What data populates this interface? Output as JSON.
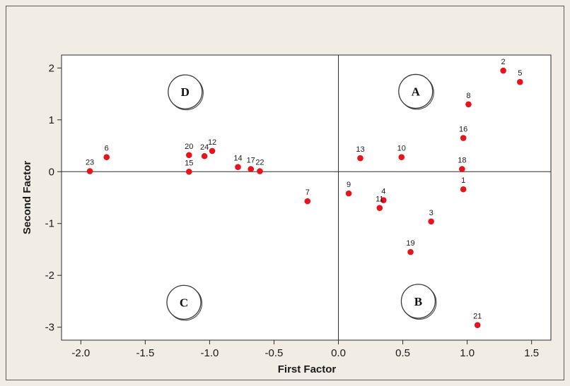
{
  "chart_data": {
    "type": "scatter",
    "title": "",
    "xlabel": "First Factor",
    "ylabel": "Second Factor",
    "xlim": [
      -2.15,
      1.65
    ],
    "ylim": [
      -3.25,
      2.25
    ],
    "x_ticks": [
      -2.0,
      -1.5,
      -1.0,
      -0.5,
      0.0,
      0.5,
      1.0,
      1.5
    ],
    "x_tick_labels": [
      "-2.0",
      "-1.5",
      "-1.0",
      "-0.5",
      "0.0",
      "0.5",
      "1.0",
      "1.5"
    ],
    "y_ticks": [
      2,
      1,
      0,
      -1,
      -2,
      -3
    ],
    "y_tick_labels": [
      "2",
      "1",
      "0",
      "-1",
      "-2",
      "-3"
    ],
    "grid": false,
    "reference_lines": {
      "x": 0,
      "y": 0
    },
    "marker_color": "#e8141b",
    "points": [
      {
        "label": "1",
        "x": 0.97,
        "y": -0.34
      },
      {
        "label": "2",
        "x": 1.28,
        "y": 1.95
      },
      {
        "label": "3",
        "x": 0.72,
        "y": -0.96
      },
      {
        "label": "4",
        "x": 0.35,
        "y": -0.55
      },
      {
        "label": "5",
        "x": 1.41,
        "y": 1.73
      },
      {
        "label": "6",
        "x": -1.8,
        "y": 0.28
      },
      {
        "label": "7",
        "x": -0.24,
        "y": -0.57
      },
      {
        "label": "8",
        "x": 1.01,
        "y": 1.3
      },
      {
        "label": "9",
        "x": 0.08,
        "y": -0.42
      },
      {
        "label": "10",
        "x": 0.49,
        "y": 0.28
      },
      {
        "label": "11",
        "x": 0.32,
        "y": -0.7
      },
      {
        "label": "12",
        "x": -0.98,
        "y": 0.4
      },
      {
        "label": "13",
        "x": 0.17,
        "y": 0.26
      },
      {
        "label": "14",
        "x": -0.78,
        "y": 0.09
      },
      {
        "label": "15",
        "x": -1.16,
        "y": 0.0
      },
      {
        "label": "16",
        "x": 0.97,
        "y": 0.65
      },
      {
        "label": "17",
        "x": -0.68,
        "y": 0.05
      },
      {
        "label": "18",
        "x": 0.96,
        "y": 0.05
      },
      {
        "label": "19",
        "x": 0.56,
        "y": -1.55
      },
      {
        "label": "20",
        "x": -1.16,
        "y": 0.32
      },
      {
        "label": "21",
        "x": 1.08,
        "y": -2.96
      },
      {
        "label": "22",
        "x": -0.61,
        "y": 0.01
      },
      {
        "label": "23",
        "x": -1.93,
        "y": 0.01
      },
      {
        "label": "24",
        "x": -1.04,
        "y": 0.3
      }
    ],
    "quadrant_labels": [
      {
        "label": "A",
        "x": 0.6,
        "y": 1.55
      },
      {
        "label": "B",
        "x": 0.62,
        "y": -2.5
      },
      {
        "label": "C",
        "x": -1.2,
        "y": -2.52
      },
      {
        "label": "D",
        "x": -1.19,
        "y": 1.54
      }
    ]
  }
}
